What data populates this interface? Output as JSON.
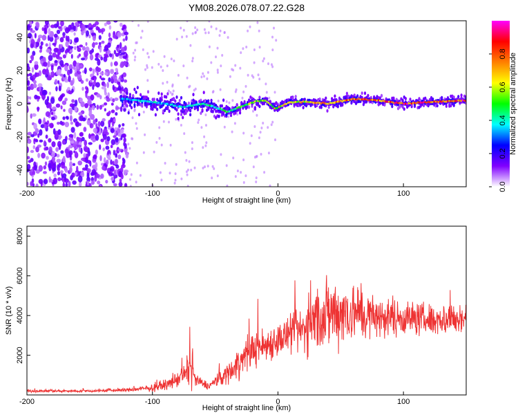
{
  "chart_data": [
    {
      "type": "heatmap",
      "title": "YM08.2026.078.07.22.G28",
      "xlabel": "Height of straight line (km)",
      "ylabel": "Frequency (Hz)",
      "xlim": [
        -200,
        150
      ],
      "ylim": [
        -50,
        50
      ],
      "xticks": [
        -200,
        -100,
        0,
        100
      ],
      "yticks": [
        -40,
        -20,
        0,
        20,
        40
      ],
      "colorbar": {
        "label": "Normalized spectral amplitude",
        "range": [
          0,
          1
        ],
        "ticks": [
          "0.0",
          "0.2",
          "0.4",
          "0.6",
          "0.8"
        ],
        "colors": [
          "#ffffff",
          "#8000ff",
          "#0000ff",
          "#00ffff",
          "#00ff00",
          "#ffff00",
          "#ff8000",
          "#ff0000",
          "#ff00ff"
        ]
      },
      "ridge": [
        {
          "x": -125,
          "y": 3,
          "amp": 0.35
        },
        {
          "x": -110,
          "y": 2,
          "amp": 0.4
        },
        {
          "x": -100,
          "y": 1,
          "amp": 0.4
        },
        {
          "x": -90,
          "y": 0,
          "amp": 0.35
        },
        {
          "x": -75,
          "y": -2,
          "amp": 0.4
        },
        {
          "x": -60,
          "y": 0,
          "amp": 0.45
        },
        {
          "x": -50,
          "y": -2,
          "amp": 0.45
        },
        {
          "x": -40,
          "y": -5,
          "amp": 0.5
        },
        {
          "x": -30,
          "y": -2,
          "amp": 0.55
        },
        {
          "x": -20,
          "y": 1,
          "amp": 0.6
        },
        {
          "x": -10,
          "y": 2,
          "amp": 0.6
        },
        {
          "x": -2,
          "y": -3,
          "amp": 0.65
        },
        {
          "x": 10,
          "y": 1,
          "amp": 0.7
        },
        {
          "x": 25,
          "y": 1,
          "amp": 0.7
        },
        {
          "x": 40,
          "y": 0,
          "amp": 0.75
        },
        {
          "x": 60,
          "y": 3,
          "amp": 0.8
        },
        {
          "x": 80,
          "y": 2,
          "amp": 0.85
        },
        {
          "x": 100,
          "y": 0,
          "amp": 0.9
        },
        {
          "x": 120,
          "y": 1,
          "amp": 0.9
        },
        {
          "x": 150,
          "y": 2,
          "amp": 0.9
        }
      ]
    },
    {
      "type": "line",
      "title": "",
      "xlabel": "Height of straight line (km)",
      "ylabel": "SNR (10 * v/v)",
      "xlim": [
        -200,
        150
      ],
      "ylim": [
        0,
        8500
      ],
      "xticks": [
        -200,
        -100,
        0,
        100
      ],
      "yticks": [
        2000,
        4000,
        6000,
        8000
      ],
      "color": "#ee3333",
      "envelope": {
        "x": [
          -200,
          -150,
          -120,
          -100,
          -85,
          -75,
          -70,
          -65,
          -55,
          -40,
          -30,
          -20,
          -10,
          0,
          10,
          20,
          30,
          40,
          50,
          60,
          70,
          80,
          100,
          120,
          140,
          150
        ],
        "base": [
          200,
          200,
          250,
          350,
          600,
          1000,
          1400,
          700,
          450,
          1100,
          1700,
          2300,
          2500,
          2800,
          3000,
          3300,
          3800,
          4100,
          4200,
          4200,
          4000,
          3900,
          3900,
          3800,
          3800,
          3900
        ],
        "noise": [
          100,
          100,
          150,
          250,
          400,
          800,
          1300,
          500,
          250,
          800,
          1200,
          1300,
          1300,
          1300,
          1400,
          1800,
          2400,
          2800,
          2500,
          2300,
          1900,
          1500,
          1300,
          1200,
          1200,
          1200
        ]
      }
    }
  ]
}
